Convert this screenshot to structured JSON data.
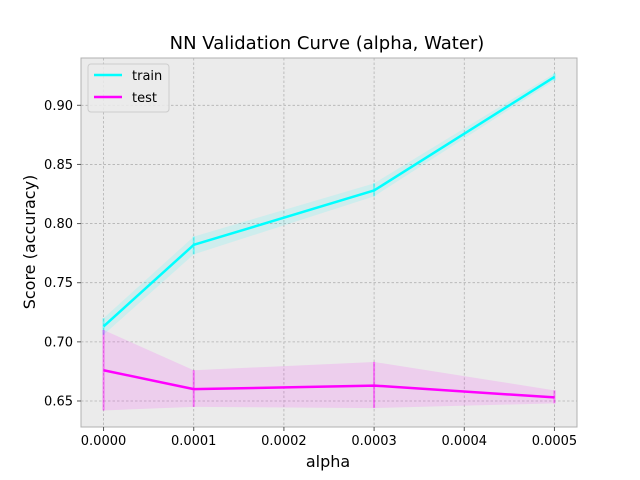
{
  "chart_data": {
    "type": "line",
    "title": "NN Validation Curve (alpha, Water)",
    "xlabel": "alpha",
    "ylabel": "Score (accuracy)",
    "x": [
      0.0,
      0.0001,
      0.0003,
      0.0005
    ],
    "x_ticks": [
      0.0,
      0.0001,
      0.0002,
      0.0003,
      0.0004,
      0.0005
    ],
    "x_tick_labels": [
      "0.0000",
      "0.0001",
      "0.0002",
      "0.0003",
      "0.0004",
      "0.0005"
    ],
    "y_ticks": [
      0.65,
      0.7,
      0.75,
      0.8,
      0.85,
      0.9
    ],
    "y_tick_labels": [
      "0.65",
      "0.70",
      "0.75",
      "0.80",
      "0.85",
      "0.90"
    ],
    "xlim": [
      -2.5e-05,
      0.000525
    ],
    "ylim": [
      0.628,
      0.94
    ],
    "grid": true,
    "legend_position": "top-left",
    "series": [
      {
        "name": "train",
        "color": "#00ffff",
        "values": [
          0.713,
          0.782,
          0.828,
          0.924
        ],
        "band_lower": [
          0.706,
          0.774,
          0.823,
          0.921
        ],
        "band_upper": [
          0.72,
          0.789,
          0.834,
          0.927
        ]
      },
      {
        "name": "test",
        "color": "#ff00ff",
        "values": [
          0.676,
          0.66,
          0.663,
          0.653
        ],
        "band_lower": [
          0.642,
          0.645,
          0.644,
          0.648
        ],
        "band_upper": [
          0.71,
          0.676,
          0.683,
          0.659
        ]
      }
    ]
  }
}
